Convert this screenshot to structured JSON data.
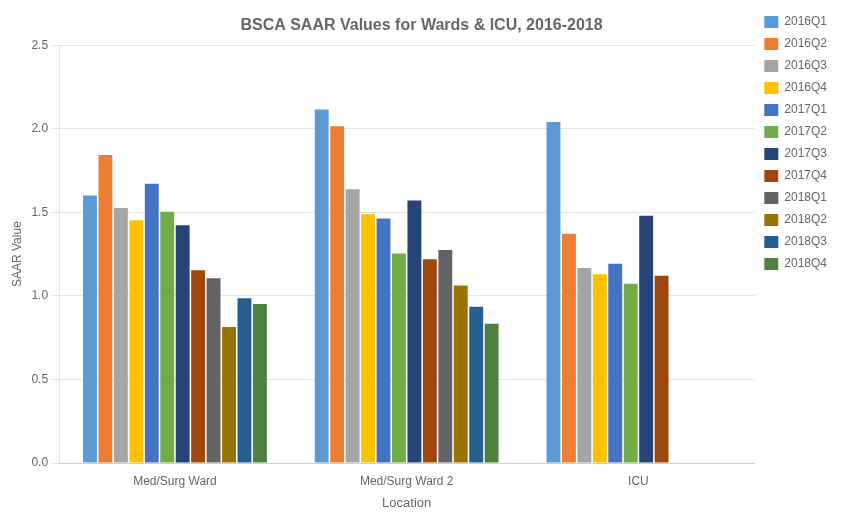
{
  "chart_data": {
    "type": "bar",
    "title": "BSCA SAAR Values for Wards & ICU, 2016-2018",
    "xlabel": "Location",
    "ylabel": "SAAR Value",
    "categories": [
      "Med/Surg Ward",
      "Med/Surg Ward 2",
      "ICU"
    ],
    "series": [
      {
        "name": "2016Q1",
        "color": "#5B9BD5",
        "values": [
          1.601,
          2.115,
          2.04
        ]
      },
      {
        "name": "2016Q2",
        "color": "#ED7D31",
        "values": [
          1.843,
          2.015,
          1.372
        ]
      },
      {
        "name": "2016Q3",
        "color": "#A5A5A5",
        "values": [
          1.526,
          1.638,
          1.167
        ]
      },
      {
        "name": "2016Q4",
        "color": "#FFC000",
        "values": [
          1.452,
          1.488,
          1.13
        ]
      },
      {
        "name": "2017Q1",
        "color": "#4472C4",
        "values": [
          1.671,
          1.463,
          1.193
        ]
      },
      {
        "name": "2017Q2",
        "color": "#70AD47",
        "values": [
          1.503,
          1.254,
          1.073
        ]
      },
      {
        "name": "2017Q3",
        "color": "#264478",
        "values": [
          1.423,
          1.571,
          1.48
        ]
      },
      {
        "name": "2017Q4",
        "color": "#9E480E",
        "values": [
          1.153,
          1.219,
          1.12
        ]
      },
      {
        "name": "2018Q1",
        "color": "#636363",
        "values": [
          1.105,
          1.274,
          null
        ]
      },
      {
        "name": "2018Q2",
        "color": "#997300",
        "values": [
          0.814,
          1.062,
          null
        ]
      },
      {
        "name": "2018Q3",
        "color": "#255E91",
        "values": [
          0.986,
          0.935,
          null
        ]
      },
      {
        "name": "2018Q4",
        "color": "#4E8040",
        "values": [
          0.952,
          0.833,
          null
        ]
      }
    ],
    "ylim": [
      0,
      2.5
    ],
    "yticks": [
      {
        "value": 0,
        "label": "0.0"
      },
      0.5,
      {
        "value": 1,
        "label": "1.0"
      },
      1.5,
      {
        "value": 2,
        "label": "2.0"
      },
      2.5
    ],
    "grid": true,
    "legend": "right"
  }
}
